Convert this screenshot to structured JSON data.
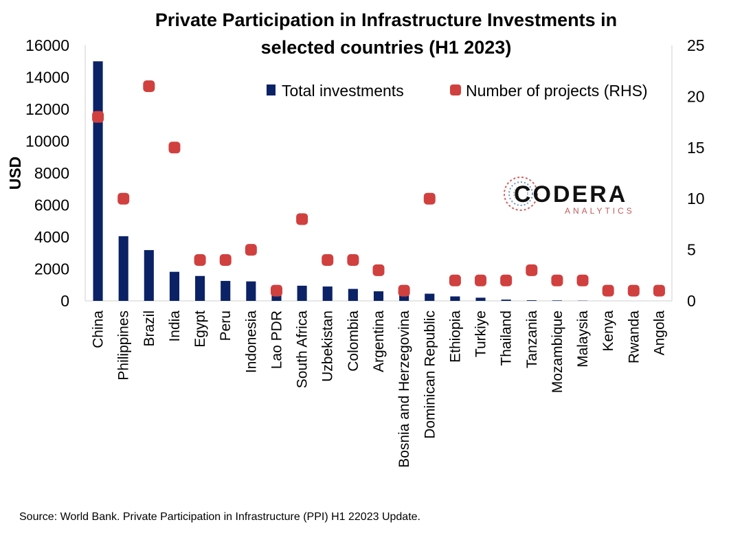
{
  "chart_data": {
    "type": "bar",
    "title_lines": [
      "Private Participation in Infrastructure Investments in",
      "selected countries (H1 2023)"
    ],
    "ylabel": "USD",
    "ylim": [
      0,
      16000
    ],
    "yticks": [
      "0",
      "2000",
      "4000",
      "6000",
      "8000",
      "10000",
      "12000",
      "14000",
      "16000"
    ],
    "y2lim": [
      0,
      25
    ],
    "y2ticks": [
      "0",
      "5",
      "10",
      "15",
      "20",
      "25"
    ],
    "grid": false,
    "legend_position": "top-right",
    "categories": [
      "China",
      "Philippines",
      "Brazil",
      "India",
      "Egypt",
      "Peru",
      "Indonesia",
      "Lao PDR",
      "South Africa",
      "Uzbekistan",
      "Colombia",
      "Argentina",
      "Bosnia and Herzegovina",
      "Dominican Republic",
      "Ethiopia",
      "Turkiye",
      "Thailand",
      "Tanzania",
      "Mozambique",
      "Malaysia",
      "Kenya",
      "Rwanda",
      "Angola"
    ],
    "series": [
      {
        "name": "Total investments",
        "type": "bar",
        "axis": "left",
        "color": "#0b2266",
        "values": [
          15000,
          4050,
          3180,
          1820,
          1560,
          1250,
          1220,
          820,
          950,
          900,
          750,
          600,
          500,
          450,
          280,
          200,
          80,
          40,
          30,
          15,
          0,
          0,
          0
        ]
      },
      {
        "name": "Number of projects (RHS)",
        "type": "scatter",
        "axis": "right",
        "color": "#d0403f",
        "values": [
          18,
          10,
          21,
          15,
          4,
          4,
          5,
          1,
          8,
          4,
          4,
          3,
          1,
          10,
          2,
          2,
          2,
          3,
          2,
          2,
          1,
          1,
          1
        ]
      }
    ]
  },
  "logo": {
    "name": "CODERA",
    "sub": "ANALYTICS"
  },
  "source": "Source: World Bank. Private Participation in Infrastructure (PPI) H1 22023 Update."
}
